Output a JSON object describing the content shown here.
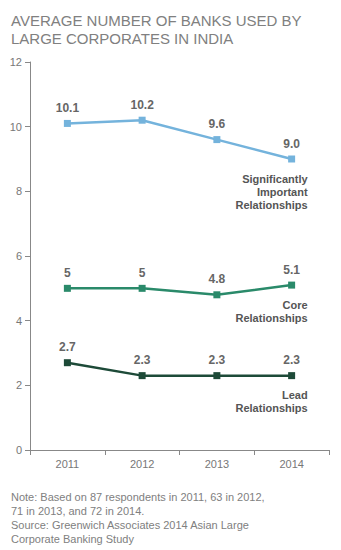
{
  "chart_data": {
    "type": "line",
    "title": "AVERAGE NUMBER OF BANKS USED BY LARGE CORPORATES IN INDIA",
    "categories": [
      "2011",
      "2012",
      "2013",
      "2014"
    ],
    "series": [
      {
        "name": "Significantly Important Relationships",
        "color": "#74b3dc",
        "values": [
          10.1,
          10.2,
          9.6,
          9.0
        ],
        "value_labels": [
          "10.1",
          "10.2",
          "9.6",
          "9.0"
        ]
      },
      {
        "name": "Core Relationships",
        "color": "#2a8a6a",
        "values": [
          5,
          5,
          4.8,
          5.1
        ]
      },
      {
        "name": "Lead Relationships",
        "color": "#1d4a38",
        "values": [
          2.7,
          2.3,
          2.3,
          2.3
        ]
      }
    ],
    "ylim": [
      0,
      12
    ],
    "yticks": [
      0,
      2,
      4,
      6,
      8,
      10,
      12
    ],
    "grid": false,
    "data_labels": true,
    "marker": "square",
    "line_style": "solid",
    "note": "Note: Based on 87 respondents in 2011, 63 in 2012, 71 in 2013, and 72 in 2014.",
    "source": "Source: Greenwich Associates 2014 Asian Large Corporate Banking Study"
  }
}
